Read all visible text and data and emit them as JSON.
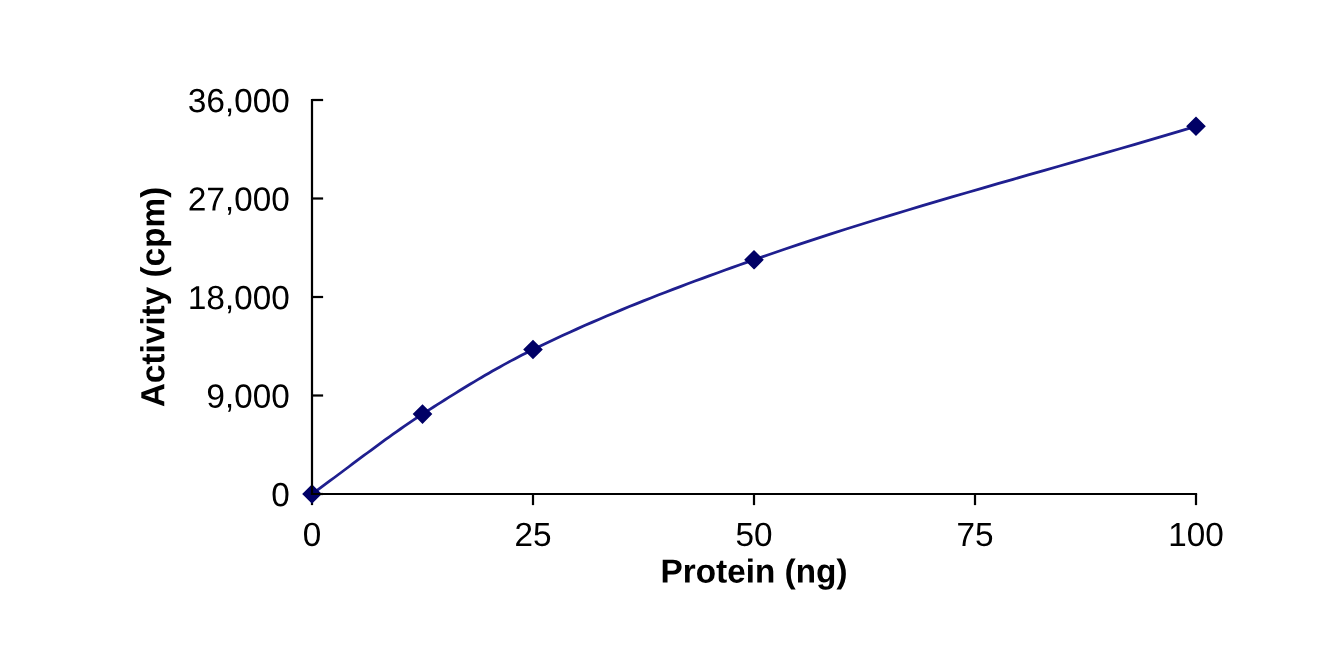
{
  "chart_data": {
    "type": "line",
    "xlabel": "Protein (ng)",
    "ylabel": "Activity (cpm)",
    "x": [
      0,
      12.5,
      25,
      50,
      100
    ],
    "series": [
      {
        "color": "#1f1f8f",
        "values": [
          0,
          7300,
          13200,
          21400,
          33600
        ]
      }
    ],
    "xlim": [
      0,
      100
    ],
    "xticks": [
      0,
      25,
      50,
      75,
      100
    ],
    "ylim": [
      0,
      36000
    ],
    "yticks": [
      {
        "value": 0,
        "label": "0"
      },
      {
        "value": 9000,
        "label": "9,000"
      },
      {
        "value": 18000,
        "label": "18,000"
      },
      {
        "value": 27000,
        "label": "27,000"
      },
      {
        "value": 36000,
        "label": "36,000"
      }
    ],
    "marker": "diamond",
    "grid": false,
    "legend": false
  }
}
